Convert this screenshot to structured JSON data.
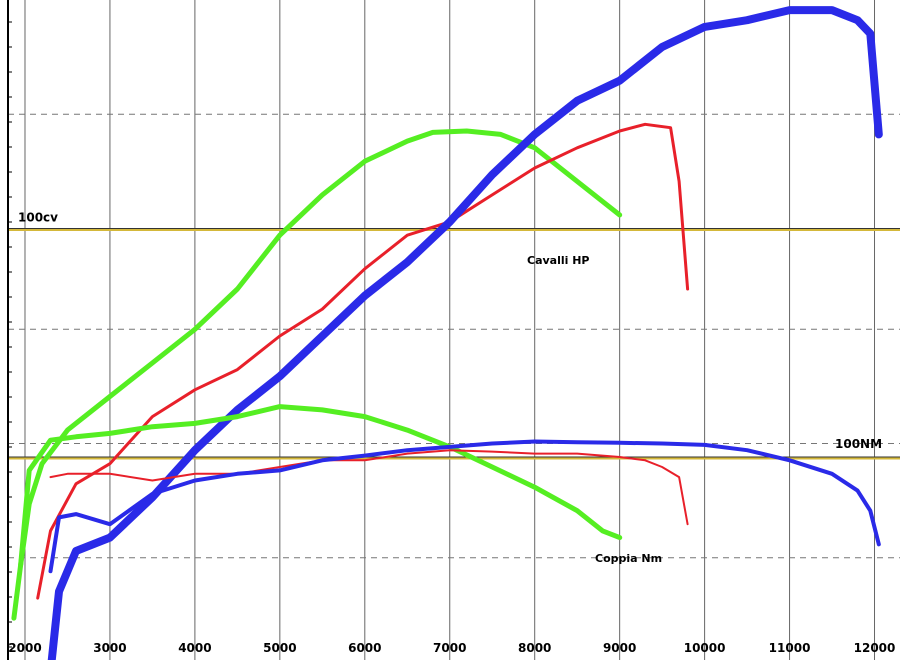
{
  "chart_data": {
    "type": "line",
    "title": "",
    "xlabel": "",
    "ylabel": "",
    "xlim": [
      1800,
      12300
    ],
    "ylim": [
      0,
      100
    ],
    "x_ticks": [
      2000,
      3000,
      4000,
      5000,
      6000,
      7000,
      8000,
      9000,
      10000,
      11000,
      12000
    ],
    "x_tick_labels": [
      "2000",
      "3000",
      "4000",
      "5000",
      "6000",
      "7000",
      "8000",
      "9000",
      "10000",
      "11000",
      "12000"
    ],
    "y_gridlines": [
      17,
      34,
      51,
      66,
      83
    ],
    "reference_lines": [
      {
        "label": "100cv",
        "y": 66,
        "color": "#d4b83a"
      },
      {
        "label": "100NM",
        "y": 32,
        "color": "#d4b83a"
      }
    ],
    "annotations": [
      "Cavalli HP",
      "Coppia Nm"
    ],
    "grid": true,
    "legend": "none",
    "series": [
      {
        "group": "power",
        "color": "#55ee22",
        "width": 5,
        "x": [
          1870,
          1950,
          2050,
          2200,
          2500,
          3000,
          3500,
          4000,
          4500,
          5000,
          5500,
          6000,
          6500,
          6800,
          7200,
          7600,
          8000,
          8400,
          8800,
          9000
        ],
        "y": [
          8,
          16,
          25,
          31,
          36,
          41,
          46,
          51,
          57,
          65,
          71,
          76,
          79,
          80.3,
          80.5,
          80,
          78,
          74,
          70,
          68
        ]
      },
      {
        "group": "power",
        "color": "#e8202a",
        "width": 3,
        "x": [
          2150,
          2300,
          2600,
          3000,
          3500,
          4000,
          4500,
          5000,
          5500,
          6000,
          6500,
          7000,
          7500,
          8000,
          8500,
          9000,
          9300,
          9600,
          9700,
          9800
        ],
        "y": [
          11,
          21,
          28,
          31,
          38,
          42,
          45,
          50,
          54,
          60,
          65,
          67,
          71,
          75,
          78,
          80.5,
          81.5,
          81,
          73,
          57
        ]
      },
      {
        "group": "power",
        "color": "#2a2ae8",
        "width": 8,
        "x": [
          2300,
          2400,
          2600,
          3000,
          3500,
          4000,
          4500,
          5000,
          5500,
          6000,
          6500,
          7000,
          7500,
          8000,
          8500,
          9000,
          9500,
          10000,
          10500,
          11000,
          11500,
          11800,
          11950,
          12050
        ],
        "y": [
          0,
          12,
          18,
          20,
          26,
          33,
          39,
          44,
          50,
          56,
          61,
          67,
          74,
          80,
          85,
          88,
          93,
          96,
          97,
          98.5,
          98.5,
          97,
          95,
          80
        ]
      },
      {
        "group": "torque",
        "color": "#55ee22",
        "width": 5,
        "x": [
          1950,
          2050,
          2300,
          2600,
          3000,
          3500,
          4000,
          4500,
          5000,
          5500,
          6000,
          6500,
          7000,
          7500,
          8000,
          8500,
          8800,
          9000
        ],
        "y": [
          16,
          30,
          34.5,
          35,
          35.5,
          36.5,
          37,
          38,
          39.5,
          39,
          38,
          36,
          33.5,
          30.5,
          27.5,
          24,
          21,
          20
        ]
      },
      {
        "group": "torque",
        "color": "#e8202a",
        "width": 2,
        "x": [
          2300,
          2500,
          3000,
          3500,
          4000,
          4500,
          5000,
          5500,
          6000,
          6500,
          7000,
          7500,
          8000,
          8500,
          9000,
          9300,
          9500,
          9700,
          9800
        ],
        "y": [
          29,
          29.5,
          29.5,
          28.5,
          29.5,
          29.5,
          30.5,
          31.5,
          31.5,
          32.5,
          33,
          32.8,
          32.5,
          32.5,
          32,
          31.5,
          30.5,
          29,
          22
        ]
      },
      {
        "group": "torque",
        "color": "#2a2ae8",
        "width": 4,
        "x": [
          2300,
          2400,
          2600,
          3000,
          3500,
          4000,
          4500,
          5000,
          5500,
          6000,
          6500,
          7000,
          7500,
          8000,
          8500,
          9000,
          9500,
          10000,
          10500,
          11000,
          11500,
          11800,
          11950,
          12050
        ],
        "y": [
          15,
          23,
          23.5,
          22,
          26.5,
          28.5,
          29.5,
          30,
          31.5,
          32.2,
          33,
          33.5,
          34,
          34.3,
          34.2,
          34.1,
          34,
          33.8,
          33,
          31.5,
          29.5,
          27,
          24,
          19
        ]
      }
    ]
  }
}
